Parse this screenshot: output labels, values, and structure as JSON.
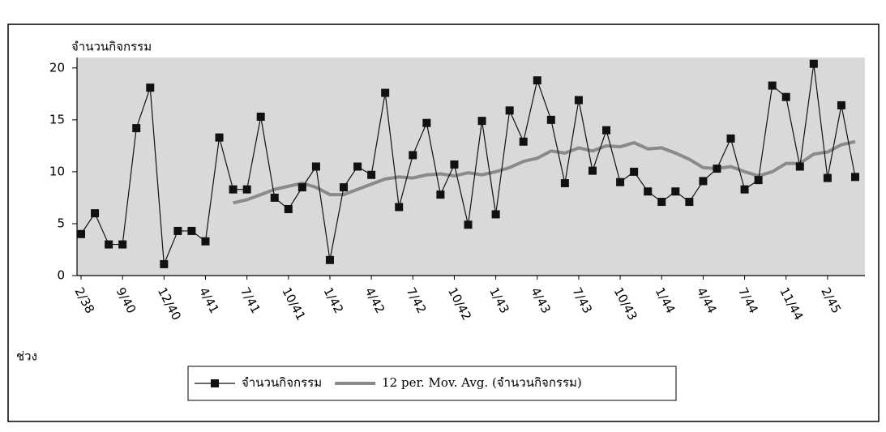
{
  "chart_data": {
    "type": "line",
    "y_label": "จำนวนกิจกรรม",
    "x_label": "ช่วง",
    "categories": [
      "2/38",
      null,
      null,
      "9/40",
      null,
      null,
      "12/40",
      null,
      null,
      "4/41",
      null,
      null,
      "7/41",
      null,
      null,
      "10/41",
      null,
      null,
      "1/42",
      null,
      null,
      "4/42",
      null,
      null,
      "7/42",
      null,
      null,
      "10/42",
      null,
      null,
      "1/43",
      null,
      null,
      "4/43",
      null,
      null,
      "7/43",
      null,
      null,
      "10/43",
      null,
      null,
      "1/44",
      null,
      null,
      "4/44",
      null,
      null,
      "7/44",
      null,
      null,
      "11/44",
      null,
      null,
      "2/45",
      null,
      null
    ],
    "series": [
      {
        "name": "จำนวนกิจกรรม",
        "color": "#111111",
        "marker": "square",
        "values": [
          4,
          6,
          3,
          3,
          14.2,
          18.1,
          1.1,
          4.3,
          4.3,
          3.3,
          13.3,
          8.3,
          8.3,
          15.3,
          7.5,
          6.4,
          8.5,
          10.5,
          1.5,
          8.5,
          10.5,
          9.7,
          17.6,
          6.6,
          11.6,
          14.7,
          7.8,
          10.7,
          4.9,
          14.9,
          5.9,
          15.9,
          12.9,
          18.8,
          15,
          8.9,
          16.9,
          10.1,
          14,
          9,
          10,
          8.1,
          7.1,
          8.1,
          7.1,
          9.1,
          10.3,
          13.2,
          8.3,
          9.2,
          18.3,
          17.2,
          10.5,
          20.4,
          9.4,
          16.4,
          9.5
        ]
      },
      {
        "name": "12 per. Mov. Avg. (จำนวนกิจกรรม)",
        "color": "#8a8a8a",
        "marker": "none",
        "values": [
          null,
          null,
          null,
          null,
          null,
          null,
          null,
          null,
          null,
          null,
          null,
          7.0,
          7.3,
          7.8,
          8.3,
          8.6,
          8.9,
          8.5,
          7.8,
          7.8,
          8.3,
          8.8,
          9.3,
          9.5,
          9.4,
          9.7,
          9.8,
          9.6,
          9.9,
          9.7,
          10,
          10.4,
          11,
          11.3,
          12,
          11.8,
          12.3,
          12,
          12.5,
          12.4,
          12.8,
          12.2,
          12.3,
          11.8,
          11.2,
          10.4,
          10.3,
          10.5,
          10,
          9.6,
          10,
          10.8,
          10.8,
          11.7,
          11.9,
          12.6,
          12.9
        ]
      }
    ],
    "ylim": [
      0,
      21
    ],
    "yticks": [
      0,
      5,
      10,
      15,
      20
    ],
    "grid": false,
    "legend": "bottom"
  }
}
